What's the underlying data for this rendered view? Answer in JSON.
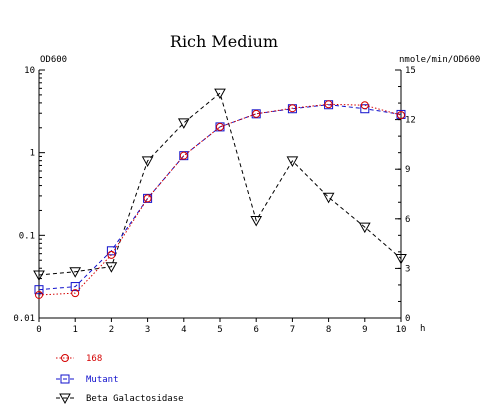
{
  "chart_data": {
    "type": "line",
    "title": "Rich Medium",
    "ylabel_left": "OD600",
    "ylabel_right": "nmole/min/OD600",
    "xlabel": "h",
    "x": [
      0,
      1,
      2,
      3,
      4,
      5,
      6,
      7,
      8,
      9,
      10
    ],
    "x_tick_labels": [
      "0",
      "1",
      "2",
      "3",
      "4",
      "5",
      "6",
      "7",
      "8",
      "9",
      "10"
    ],
    "xlim": [
      0,
      10
    ],
    "y_left_scale": "log",
    "y_left_lim": [
      0.01,
      10
    ],
    "y_left_tick_labels": [
      "10",
      "1",
      "0.1",
      "0.01"
    ],
    "y_right_lim": [
      0,
      15
    ],
    "y_right_tick_labels": [
      "15",
      "12",
      "9",
      "6",
      "3",
      "0"
    ],
    "grid": false,
    "legend_position": "bottom-left",
    "series": [
      {
        "name": "168",
        "axis": "left",
        "color": "#d40000",
        "marker": "circle",
        "line_style": "dotted",
        "values": [
          0.019,
          0.02,
          0.058,
          0.28,
          0.92,
          2.05,
          2.95,
          3.45,
          3.85,
          3.75,
          2.85
        ]
      },
      {
        "name": "Mutant",
        "axis": "left",
        "color": "#1010cc",
        "marker": "square",
        "line_style": "dashed",
        "values": [
          0.022,
          0.024,
          0.065,
          0.28,
          0.92,
          2.05,
          2.95,
          3.4,
          3.8,
          3.4,
          2.9
        ]
      },
      {
        "name": "Beta Galactosidase",
        "axis": "right",
        "color": "#000000",
        "marker": "triangle-down",
        "line_style": "dashed",
        "values": [
          2.6,
          2.8,
          3.1,
          9.5,
          11.8,
          13.6,
          5.9,
          9.5,
          7.3,
          5.5,
          3.6
        ]
      }
    ]
  }
}
